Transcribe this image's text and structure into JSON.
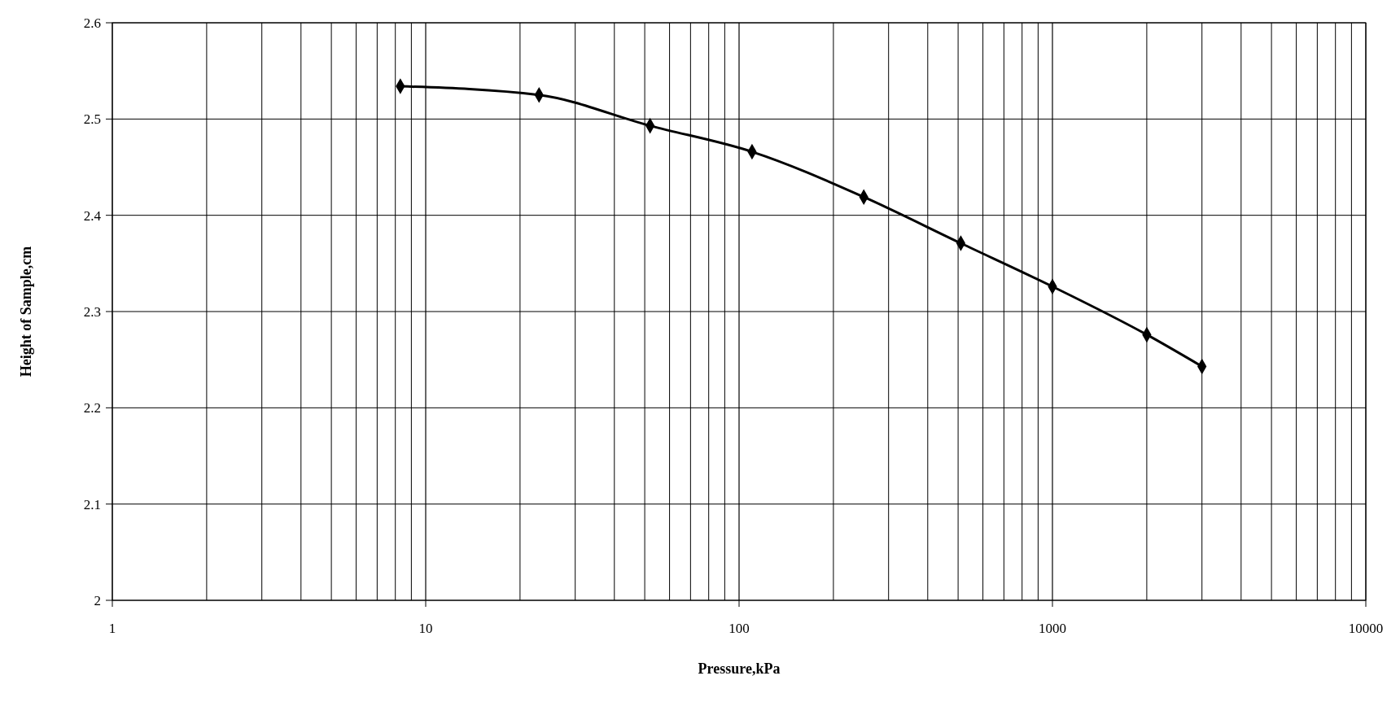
{
  "chart_data": {
    "type": "line",
    "xlabel": "Pressure,kPa",
    "ylabel": "Height of Sample,cm",
    "x": [
      8.3,
      23,
      52,
      110,
      250,
      510,
      1000,
      2000,
      3000
    ],
    "series": [
      {
        "color": "#000000",
        "values": [
          2.534,
          2.525,
          2.493,
          2.466,
          2.419,
          2.371,
          2.326,
          2.276,
          2.243
        ]
      }
    ],
    "log": "x",
    "xlim": [
      1,
      10000
    ],
    "xticks": [
      1,
      10,
      100,
      1000,
      10000
    ],
    "ylim": [
      2,
      2.6
    ],
    "yticks": [
      2,
      2.1,
      2.2,
      2.3,
      2.4,
      2.5,
      2.6
    ],
    "grid": true,
    "marker": "diamond",
    "line_style": "solid"
  }
}
